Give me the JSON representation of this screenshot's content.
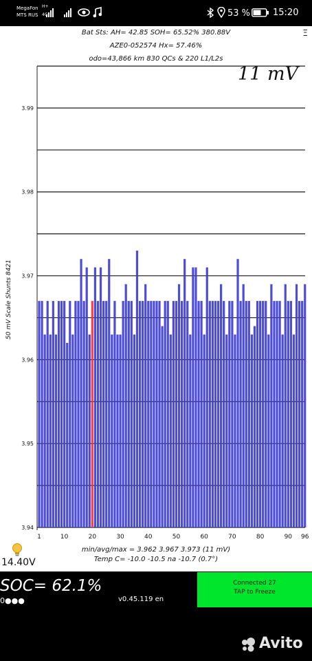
{
  "status_bar": {
    "carrier_line1": "MegaFon",
    "carrier_line2": "MTS RUS",
    "network_badge_1": "H+",
    "network_badge_2": "4G",
    "battery_percent": "53 %",
    "time": "15:20"
  },
  "header": {
    "line1": "Bat Sts: AH= 42.85  SOH= 65.52%  380.88V",
    "line2": "AZE0-052574  Hx= 57.46%",
    "line3": "odo=43,866 km 830 QCs & 220 L1/L2s",
    "menu_glyph": "Ξ"
  },
  "big_mv": "11 mV",
  "chart_data": {
    "type": "bar",
    "ylabel": "50 mV Scale  Shunts 8421",
    "ylim": [
      3.94,
      3.995
    ],
    "yticks": [
      "3.94",
      "3.95",
      "3.96",
      "3.97",
      "3.98",
      "3.99"
    ],
    "grid": true,
    "xticks": [
      "1",
      "10",
      "20",
      "30",
      "40",
      "50",
      "60",
      "70",
      "80",
      "90",
      "96"
    ],
    "x": [
      1,
      2,
      3,
      4,
      5,
      6,
      7,
      8,
      9,
      10,
      11,
      12,
      13,
      14,
      15,
      16,
      17,
      18,
      19,
      20,
      21,
      22,
      23,
      24,
      25,
      26,
      27,
      28,
      29,
      30,
      31,
      32,
      33,
      34,
      35,
      36,
      37,
      38,
      39,
      40,
      41,
      42,
      43,
      44,
      45,
      46,
      47,
      48,
      49,
      50,
      51,
      52,
      53,
      54,
      55,
      56,
      57,
      58,
      59,
      60,
      61,
      62,
      63,
      64,
      65,
      66,
      67,
      68,
      69,
      70,
      71,
      72,
      73,
      74,
      75,
      76,
      77,
      78,
      79,
      80,
      81,
      82,
      83,
      84,
      85,
      86,
      87,
      88,
      89,
      90,
      91,
      92,
      93,
      94,
      95,
      96
    ],
    "values": [
      3.967,
      3.967,
      3.963,
      3.967,
      3.963,
      3.967,
      3.963,
      3.967,
      3.967,
      3.967,
      3.962,
      3.967,
      3.963,
      3.967,
      3.967,
      3.972,
      3.967,
      3.971,
      3.963,
      3.967,
      3.971,
      3.967,
      3.971,
      3.967,
      3.967,
      3.972,
      3.963,
      3.967,
      3.963,
      3.963,
      3.967,
      3.969,
      3.967,
      3.967,
      3.963,
      3.973,
      3.967,
      3.967,
      3.969,
      3.967,
      3.967,
      3.967,
      3.967,
      3.967,
      3.964,
      3.967,
      3.967,
      3.963,
      3.967,
      3.967,
      3.969,
      3.967,
      3.972,
      3.967,
      3.963,
      3.971,
      3.971,
      3.967,
      3.967,
      3.963,
      3.971,
      3.967,
      3.967,
      3.967,
      3.967,
      3.969,
      3.967,
      3.963,
      3.967,
      3.967,
      3.963,
      3.972,
      3.967,
      3.969,
      3.967,
      3.967,
      3.963,
      3.964,
      3.967,
      3.967,
      3.967,
      3.967,
      3.963,
      3.969,
      3.967,
      3.967,
      3.967,
      3.963,
      3.969,
      3.967,
      3.967,
      3.963,
      3.969,
      3.967,
      3.967,
      3.969
    ],
    "highlight_x": 20,
    "bar_color": "#4c4cd9",
    "highlight_color": "#ff4040"
  },
  "summary_line1": "min/avg/max = 3.962 3.967 3.973 (11 mV)",
  "summary_line2": "Temp C= -10.0  -10.5  na  -10.7  (0.7°)",
  "pack_voltage": "14.40V",
  "soc_text": "SOC= 62.1%",
  "dots_text": "0●●●",
  "version": "v0.45.119 en",
  "connected_line1": "Connected 27",
  "connected_line2": "TAP to Freeze",
  "watermark": "Avito",
  "colors": {
    "green_panel": "#00e62d",
    "bulb": "#f2c53d"
  }
}
